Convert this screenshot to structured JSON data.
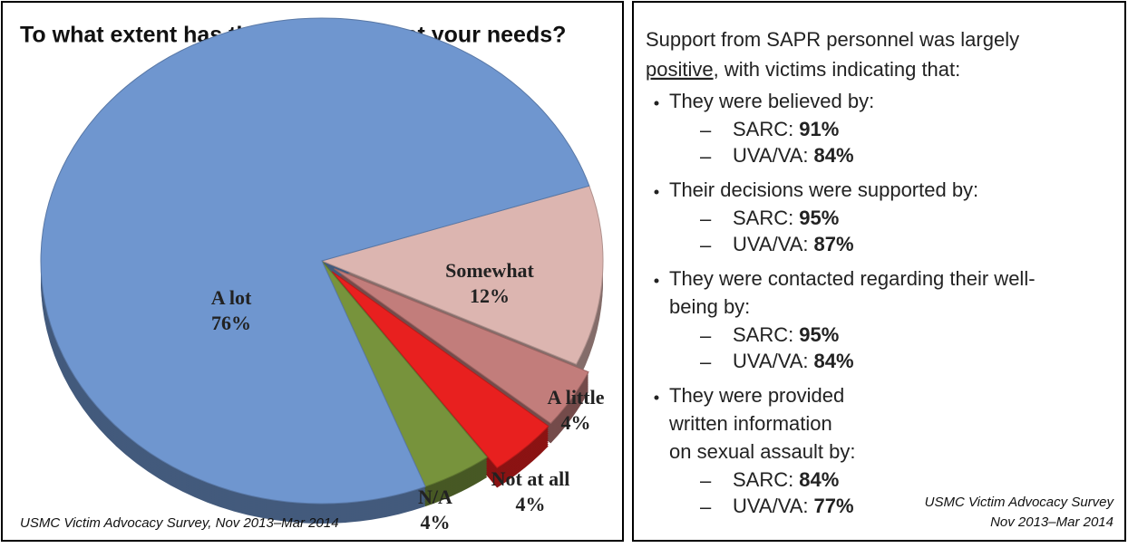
{
  "chart_data": {
    "type": "pie",
    "title": "To what extent has the UVA or VA met your needs?",
    "categories": [
      "Somewhat",
      "A little",
      "Not at all",
      "N/A",
      "A lot"
    ],
    "values": [
      12,
      4,
      4,
      4,
      76
    ],
    "value_labels": [
      "12%",
      "4%",
      "4%",
      "4%",
      "76%"
    ],
    "colors": [
      "#dcb5b0",
      "#c27d7b",
      "#e8201f",
      "#77933c",
      "#6f96cf"
    ],
    "exploded": [
      false,
      true,
      true,
      false,
      false
    ],
    "source": "USMC Victim Advocacy Survey, Nov 2013–Mar 2014"
  },
  "panel": {
    "intro_before": "Support from SAPR personnel was largely",
    "intro_emphasis": "positive",
    "intro_after": ", with victims indicating that:",
    "bullets": [
      {
        "lines": [
          "They were believed by:"
        ],
        "items": [
          {
            "label": "SARC:",
            "value": 91,
            "unit": "%"
          },
          {
            "label": "UVA/VA:",
            "value": 84,
            "unit": "%"
          }
        ]
      },
      {
        "lines": [
          "Their decisions were supported by:"
        ],
        "items": [
          {
            "label": "SARC:",
            "value": 95,
            "unit": "%"
          },
          {
            "label": "UVA/VA:",
            "value": 87,
            "unit": "%"
          }
        ]
      },
      {
        "lines": [
          "They were contacted regarding their well-",
          "being by:"
        ],
        "items": [
          {
            "label": "SARC:",
            "value": 95,
            "unit": "%"
          },
          {
            "label": "UVA/VA:",
            "value": 84,
            "unit": "%"
          }
        ]
      },
      {
        "lines": [
          "They were provided",
          "written information",
          "on sexual assault by:"
        ],
        "items": [
          {
            "label": "SARC:",
            "value": 84,
            "unit": "%"
          },
          {
            "label": "UVA/VA:",
            "value": 77,
            "unit": "%"
          }
        ]
      }
    ],
    "source": [
      "USMC Victim Advocacy Survey",
      "Nov 2013–Mar 2014"
    ]
  }
}
